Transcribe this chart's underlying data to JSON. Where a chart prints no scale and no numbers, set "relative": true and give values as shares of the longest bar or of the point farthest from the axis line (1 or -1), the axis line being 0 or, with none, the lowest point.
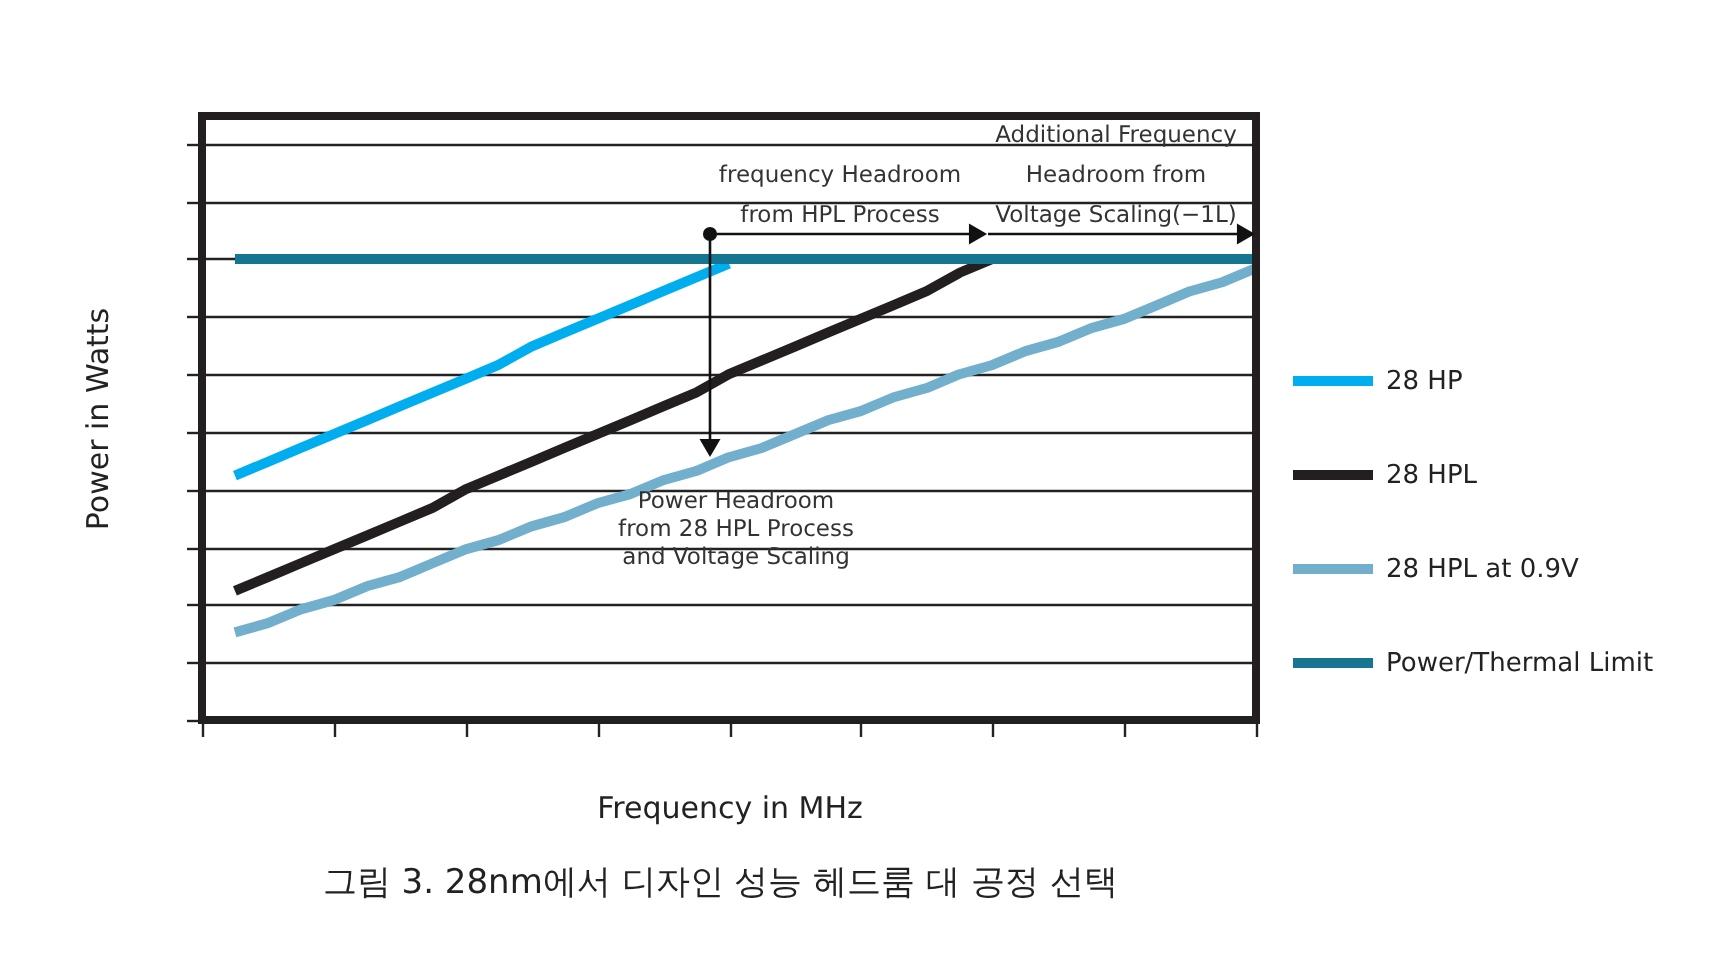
{
  "chart_data": {
    "type": "line",
    "relative": true,
    "title": "그림 3. 28nm에서 디자인 성능 헤드룸 대 공정 선택",
    "xlabel": "Frequency in MHz",
    "ylabel": "Power in Watts",
    "categories": [
      null,
      null,
      null,
      null,
      null,
      null,
      null,
      null,
      null,
      null,
      null,
      null,
      null,
      null,
      null,
      null,
      null,
      null,
      null,
      null,
      null,
      null,
      null,
      null,
      null,
      null,
      null,
      null,
      null,
      null,
      null,
      null,
      null
    ],
    "series": [
      {
        "name": "28 HP",
        "color": "#00aeef",
        "values": [
          null,
          0.53,
          0.56,
          0.59,
          0.62,
          0.65,
          0.68,
          0.71,
          0.74,
          0.77,
          0.81,
          0.84,
          0.87,
          0.9,
          0.93,
          0.96,
          0.99,
          null,
          null,
          null,
          null,
          null,
          null,
          null,
          null,
          null,
          null,
          null,
          null,
          null,
          null,
          null,
          null
        ]
      },
      {
        "name": "28 HPL",
        "color": "#231f20",
        "values": [
          null,
          0.28,
          0.31,
          0.34,
          0.37,
          0.4,
          0.43,
          0.46,
          0.5,
          0.53,
          0.56,
          0.59,
          0.62,
          0.65,
          0.68,
          0.71,
          0.75,
          0.78,
          0.81,
          0.84,
          0.87,
          0.9,
          0.93,
          0.97,
          1.0,
          null,
          null,
          null,
          null,
          null,
          null,
          null,
          null
        ]
      },
      {
        "name": "28 HPL at 0.9V",
        "color": "#72afcc",
        "values": [
          null,
          0.19,
          0.21,
          0.24,
          0.26,
          0.29,
          0.31,
          0.34,
          0.37,
          0.39,
          0.42,
          0.44,
          0.47,
          0.49,
          0.52,
          0.54,
          0.57,
          0.59,
          0.62,
          0.65,
          0.67,
          0.7,
          0.72,
          0.75,
          0.77,
          0.8,
          0.82,
          0.85,
          0.87,
          0.9,
          0.93,
          0.95,
          0.98
        ]
      },
      {
        "name": "Power/Thermal Limit",
        "color": "#167590",
        "values": [
          null,
          1,
          1,
          1,
          1,
          1,
          1,
          1,
          1,
          1,
          1,
          1,
          1,
          1,
          1,
          1,
          1,
          1,
          1,
          1,
          1,
          1,
          1,
          1,
          1,
          1,
          1,
          1,
          1,
          1,
          1,
          1,
          1
        ]
      }
    ],
    "annotations": [
      "frequency Headroom\nfrom HPL Process",
      "Additional Frequency\nHeadroom from\nVoltage Scaling(−1L)",
      "Power Headroom\nfrom 28 HPL Process\nand Voltage Scaling"
    ],
    "grid": "y",
    "legend": "right",
    "marker": "none",
    "line_style": "solid"
  }
}
